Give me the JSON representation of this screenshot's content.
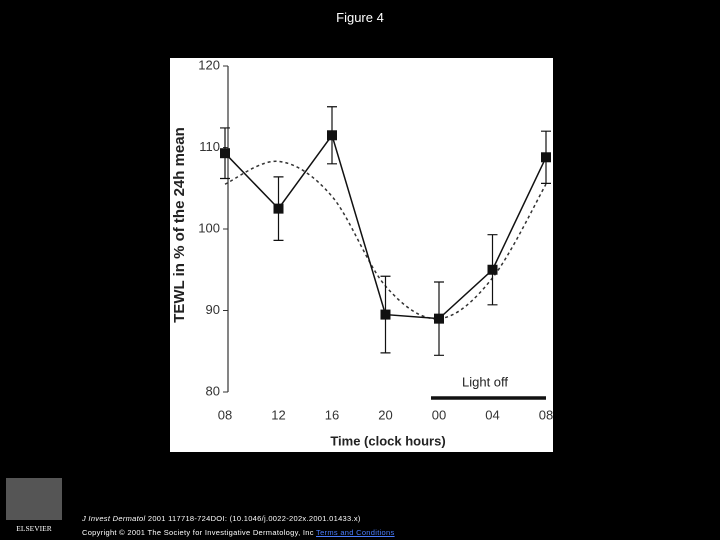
{
  "slide_title": "Figure 4",
  "chart_data": {
    "type": "line",
    "y_label": "TEWL in % of the 24h mean",
    "x_label": "Time (clock hours)",
    "categories": [
      "08",
      "12",
      "16",
      "20",
      "00",
      "04",
      "08"
    ],
    "values": [
      109.3,
      102.5,
      111.5,
      89.5,
      89,
      95,
      108.8
    ],
    "errors": [
      3.1,
      3.9,
      3.5,
      4.7,
      4.5,
      4.3,
      3.2
    ],
    "fit": [
      105.5,
      108.3,
      104,
      93,
      89,
      94,
      105.5
    ],
    "color": "#111111",
    "ylim": [
      80,
      120
    ],
    "yticks": [
      80,
      90,
      100,
      110,
      120
    ],
    "annotation": "Light off"
  },
  "footer": {
    "journal": "J Invest Dermatol",
    "citation": "2001 117718-724DOI: (10.1046/j.0022-202x.2001.01433.x)",
    "copyright": "Copyright © 2001 The Society for Investigative Dermatology, Inc",
    "link": "Terms and Conditions",
    "publisher": "ELSEVIER"
  }
}
